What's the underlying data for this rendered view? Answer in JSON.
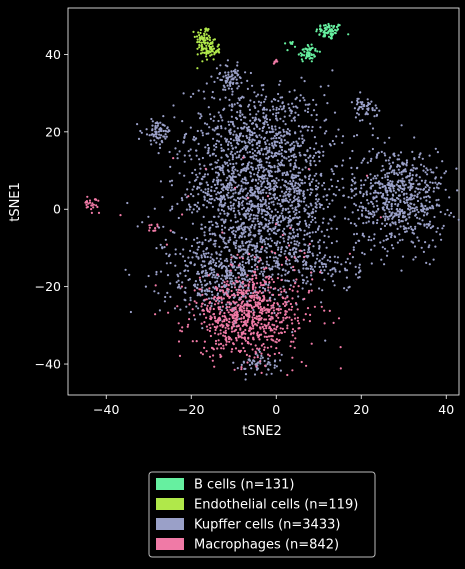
{
  "chart_data": {
    "type": "scatter",
    "xlabel": "tSNE2",
    "ylabel": "tSNE1",
    "xlim": [
      -49,
      43
    ],
    "ylim": [
      -48,
      52
    ],
    "xticks": [
      -40,
      -20,
      0,
      20,
      40
    ],
    "yticks": [
      -40,
      -20,
      0,
      20,
      40
    ],
    "x_tick_labels": [
      "−40",
      "−20",
      "0",
      "20",
      "40"
    ],
    "y_tick_labels": [
      "−40",
      "−20",
      "0",
      "20",
      "40"
    ],
    "grid": false,
    "legend_position": "below",
    "background": "#000000",
    "series": [
      {
        "name": "B cells (n=131)",
        "color": "#66f0a0",
        "count": 131,
        "clusters": [
          {
            "cx": 12.5,
            "cy": 46,
            "sx": 1.6,
            "sy": 1.1,
            "n": 70
          },
          {
            "cx": 7.5,
            "cy": 40.5,
            "sx": 1.2,
            "sy": 1.3,
            "n": 55
          },
          {
            "cx": 3,
            "cy": 42.8,
            "sx": 0.6,
            "sy": 0.3,
            "n": 6
          }
        ]
      },
      {
        "name": "Endothelial cells (n=119)",
        "color": "#b0e84a",
        "count": 119,
        "clusters": [
          {
            "cx": -17,
            "cy": 44,
            "sx": 1.0,
            "sy": 1.8,
            "n": 60
          },
          {
            "cx": -15.5,
            "cy": 41,
            "sx": 1.2,
            "sy": 1.2,
            "n": 59
          }
        ]
      },
      {
        "name": "Kupffer cells (n=3433)",
        "color": "#9aa0c8",
        "count": 3433,
        "clusters": [
          {
            "cx": -5,
            "cy": 20,
            "sx": 8,
            "sy": 6,
            "n": 500
          },
          {
            "cx": 0,
            "cy": 5,
            "sx": 8,
            "sy": 9,
            "n": 850
          },
          {
            "cx": 29,
            "cy": 3,
            "sx": 5.5,
            "sy": 6.5,
            "n": 650
          },
          {
            "cx": -13,
            "cy": -18,
            "sx": 7,
            "sy": 5,
            "n": 350
          },
          {
            "cx": -5,
            "cy": -10,
            "sx": 10,
            "sy": 7,
            "n": 500
          },
          {
            "cx": -28,
            "cy": 20,
            "sx": 1.6,
            "sy": 1.6,
            "n": 70
          },
          {
            "cx": -11,
            "cy": 34,
            "sx": 1.6,
            "sy": 1.6,
            "n": 70
          },
          {
            "cx": 21,
            "cy": 26,
            "sx": 1.4,
            "sy": 1.4,
            "n": 50
          },
          {
            "cx": -12,
            "cy": 5,
            "sx": 6,
            "sy": 6,
            "n": 250
          },
          {
            "cx": -4,
            "cy": -40,
            "sx": 2.5,
            "sy": 1.5,
            "n": 60
          },
          {
            "cx": 12,
            "cy": -15,
            "sx": 4,
            "sy": 3,
            "n": 83
          }
        ]
      },
      {
        "name": "Macrophages (n=842)",
        "color": "#f07aa6",
        "count": 842,
        "clusters": [
          {
            "cx": -7,
            "cy": -28,
            "sx": 6,
            "sy": 5,
            "n": 650
          },
          {
            "cx": -2,
            "cy": -22,
            "sx": 9,
            "sy": 7,
            "n": 120
          },
          {
            "cx": -43.5,
            "cy": 1.5,
            "sx": 0.9,
            "sy": 0.9,
            "n": 25
          },
          {
            "cx": -29,
            "cy": -5,
            "sx": 0.9,
            "sy": 0.5,
            "n": 10
          },
          {
            "cx": 0,
            "cy": 38,
            "sx": 0.5,
            "sy": 0.4,
            "n": 8
          },
          {
            "cx": -5,
            "cy": -5,
            "sx": 12,
            "sy": 12,
            "n": 29
          }
        ]
      }
    ]
  }
}
